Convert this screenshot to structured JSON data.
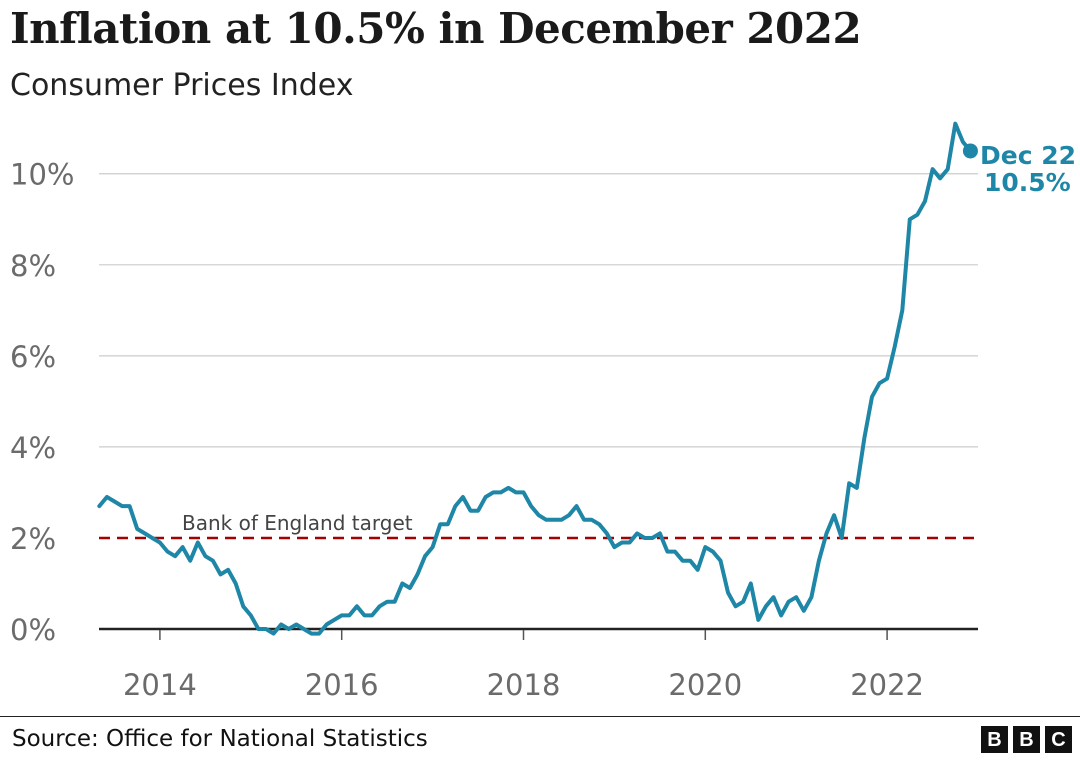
{
  "header": {
    "title": "Inflation at 10.5% in December 2022",
    "subtitle": "Consumer Prices Index"
  },
  "footer": {
    "source": "Source: Office for National Statistics",
    "logo_letters": [
      "B",
      "B",
      "C"
    ]
  },
  "colors": {
    "series": "#1e86a6",
    "target_line": "#a50000",
    "grid": "#cccccc",
    "zero_line": "#222222",
    "tick_text": "#6b6b6b"
  },
  "chart_data": {
    "type": "line",
    "title": "Inflation at 10.5% in December 2022",
    "subtitle": "Consumer Prices Index",
    "xlabel": "",
    "ylabel": "",
    "y_ticks": [
      0,
      2,
      4,
      6,
      8,
      10
    ],
    "y_tick_labels": [
      "0%",
      "2%",
      "4%",
      "6%",
      "8%",
      "10%"
    ],
    "x_ticks": [
      2014,
      2016,
      2018,
      2020,
      2022
    ],
    "x_tick_labels": [
      "2014",
      "2016",
      "2018",
      "2020",
      "2022"
    ],
    "xlim": [
      2013.33,
      2023.0
    ],
    "ylim": [
      -0.9,
      11.4
    ],
    "grid": true,
    "reference_line": {
      "label": "Bank of England target",
      "value": 2,
      "style": "dashed"
    },
    "end_label": {
      "date": "Dec 22",
      "value_text": "10.5%",
      "value": 10.5
    },
    "series": [
      {
        "start": "2013-05",
        "frequency": "monthly",
        "values": [
          2.7,
          2.9,
          2.8,
          2.7,
          2.7,
          2.2,
          2.1,
          2.0,
          1.9,
          1.7,
          1.6,
          1.8,
          1.5,
          1.9,
          1.6,
          1.5,
          1.2,
          1.3,
          1.0,
          0.5,
          0.3,
          0.0,
          0.0,
          -0.1,
          0.1,
          0.0,
          0.1,
          0.0,
          -0.1,
          -0.1,
          0.1,
          0.2,
          0.3,
          0.3,
          0.5,
          0.3,
          0.3,
          0.5,
          0.6,
          0.6,
          1.0,
          0.9,
          1.2,
          1.6,
          1.8,
          2.3,
          2.3,
          2.7,
          2.9,
          2.6,
          2.6,
          2.9,
          3.0,
          3.0,
          3.1,
          3.0,
          3.0,
          2.7,
          2.5,
          2.4,
          2.4,
          2.4,
          2.5,
          2.7,
          2.4,
          2.4,
          2.3,
          2.1,
          1.8,
          1.9,
          1.9,
          2.1,
          2.0,
          2.0,
          2.1,
          1.7,
          1.7,
          1.5,
          1.5,
          1.3,
          1.8,
          1.7,
          1.5,
          0.8,
          0.5,
          0.6,
          1.0,
          0.2,
          0.5,
          0.7,
          0.3,
          0.6,
          0.7,
          0.4,
          0.7,
          1.5,
          2.1,
          2.5,
          2.0,
          3.2,
          3.1,
          4.2,
          5.1,
          5.4,
          5.5,
          6.2,
          7.0,
          9.0,
          9.1,
          9.4,
          10.1,
          9.9,
          10.1,
          11.1,
          10.7,
          10.5
        ]
      }
    ]
  }
}
